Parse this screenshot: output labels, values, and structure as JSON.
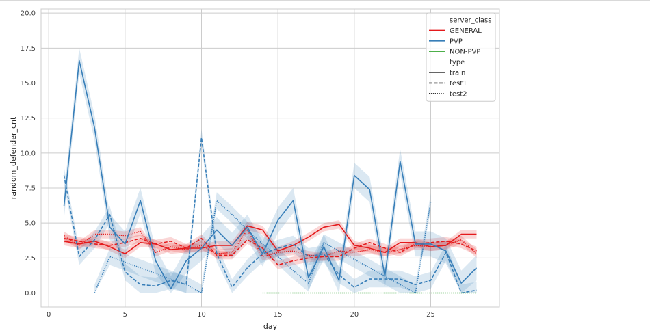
{
  "chart_data": {
    "type": "line",
    "title": "",
    "xlabel": "day",
    "ylabel": "random_defender_cnt",
    "xlim": [
      -0.5,
      29.5
    ],
    "ylim": [
      -1.0,
      20.3
    ],
    "xticks": [
      0,
      5,
      10,
      15,
      20,
      25
    ],
    "yticks": [
      0.0,
      2.5,
      5.0,
      7.5,
      10.0,
      12.5,
      15.0,
      17.5,
      20.0
    ],
    "xtick_labels": [
      "0",
      "5",
      "10",
      "15",
      "20",
      "25"
    ],
    "ytick_labels": [
      "0.0",
      "2.5",
      "5.0",
      "7.5",
      "10.0",
      "12.5",
      "15.0",
      "17.5",
      "20.0"
    ],
    "grid": true,
    "legend_position": "top-right",
    "legend": {
      "hue_title": "server_class",
      "hue_entries": [
        {
          "label": "GENERAL",
          "color": "#e41a1c"
        },
        {
          "label": "PVP",
          "color": "#377eb8"
        },
        {
          "label": "NON-PVP",
          "color": "#4daf4a"
        }
      ],
      "style_title": "type",
      "style_entries": [
        {
          "label": "train",
          "dash": "solid"
        },
        {
          "label": "test1",
          "dash": "dashed"
        },
        {
          "label": "test2",
          "dash": "dotted"
        }
      ]
    },
    "series": [
      {
        "server_class": "GENERAL",
        "type": "train",
        "color": "#e41a1c",
        "dash": "solid",
        "x": [
          1,
          2,
          3,
          4,
          5,
          6,
          7,
          8,
          9,
          10,
          11,
          12,
          13,
          14,
          15,
          16,
          17,
          18,
          19,
          20,
          21,
          22,
          23,
          24,
          25,
          26,
          27,
          28
        ],
        "y": [
          3.7,
          3.5,
          3.7,
          3.3,
          2.8,
          3.6,
          3.5,
          3.1,
          3.2,
          3.2,
          3.4,
          3.4,
          4.8,
          4.5,
          3.0,
          3.4,
          4.0,
          4.7,
          4.9,
          3.4,
          3.2,
          2.9,
          3.6,
          3.6,
          3.3,
          3.4,
          4.2,
          4.2
        ],
        "band": 0.3
      },
      {
        "server_class": "GENERAL",
        "type": "test1",
        "color": "#e41a1c",
        "dash": "dashed",
        "x": [
          1,
          2,
          3,
          4,
          5,
          6,
          7,
          8,
          9,
          10,
          11,
          12,
          13,
          14,
          15,
          16,
          17,
          18,
          19,
          20,
          21,
          22,
          23,
          24,
          25,
          26,
          27,
          28
        ],
        "y": [
          3.9,
          3.7,
          3.5,
          3.4,
          3.6,
          3.9,
          3.5,
          3.7,
          3.2,
          3.9,
          2.7,
          2.7,
          3.8,
          3.2,
          2.0,
          2.3,
          2.5,
          2.6,
          2.6,
          3.2,
          3.6,
          3.2,
          2.9,
          3.5,
          3.6,
          3.7,
          3.5,
          3.0
        ],
        "band": 0.3
      },
      {
        "server_class": "GENERAL",
        "type": "test2",
        "color": "#e41a1c",
        "dash": "dotted",
        "x": [
          1,
          2,
          3,
          4,
          5,
          6,
          7,
          8,
          9,
          10,
          11,
          12,
          13,
          14,
          15,
          16,
          17,
          18,
          19,
          20,
          21,
          22,
          23,
          24,
          25,
          26,
          27,
          28
        ],
        "y": [
          4.1,
          3.4,
          4.2,
          4.2,
          4.1,
          4.4,
          2.9,
          3.3,
          3.1,
          3.4,
          2.8,
          2.9,
          4.5,
          2.6,
          2.9,
          3.0,
          2.7,
          2.6,
          3.0,
          2.9,
          3.1,
          2.9,
          3.1,
          3.4,
          3.3,
          3.4,
          3.8,
          2.8
        ],
        "band": 0.3
      },
      {
        "server_class": "PVP",
        "type": "train",
        "color": "#377eb8",
        "dash": "solid",
        "x": [
          1,
          2,
          3,
          4,
          5,
          6,
          7,
          8,
          9,
          10,
          11,
          12,
          13,
          14,
          15,
          16,
          17,
          18,
          19,
          20,
          21,
          22,
          23,
          24,
          25,
          26,
          27,
          28
        ],
        "y": [
          6.2,
          16.6,
          11.8,
          4.7,
          3.5,
          6.6,
          2.3,
          0.3,
          2.3,
          3.2,
          4.5,
          3.4,
          4.7,
          2.8,
          5.2,
          6.6,
          1.1,
          3.3,
          0.9,
          8.4,
          7.4,
          1.2,
          9.4,
          3.5,
          3.5,
          3.0,
          0.7,
          1.8
        ],
        "band": 0.9
      },
      {
        "server_class": "PVP",
        "type": "test1",
        "color": "#377eb8",
        "dash": "dashed",
        "x": [
          1,
          2,
          3,
          4,
          5,
          6,
          7,
          8,
          9,
          10,
          11,
          12,
          13,
          14,
          15,
          16,
          17,
          18,
          19,
          20,
          21,
          22,
          23,
          24,
          25,
          26,
          27,
          28
        ],
        "y": [
          8.4,
          2.6,
          3.8,
          5.6,
          1.5,
          0.6,
          0.5,
          0.9,
          0.6,
          11.1,
          2.8,
          0.4,
          1.8,
          2.8,
          3.2,
          3.5,
          2.6,
          2.8,
          1.3,
          0.4,
          1.0,
          1.0,
          1.0,
          0.6,
          0.9,
          2.9,
          0.0,
          0.2
        ],
        "band": 0.6
      },
      {
        "server_class": "PVP",
        "type": "test2",
        "color": "#377eb8",
        "dash": "dotted",
        "x": [
          3,
          4,
          5,
          6,
          7,
          8,
          9,
          10,
          11,
          12,
          13,
          14,
          15,
          16,
          17,
          18,
          19,
          20,
          21,
          22,
          23,
          24,
          25
        ],
        "y": [
          0.0,
          2.6,
          2.2,
          1.8,
          1.4,
          1.0,
          0.6,
          0.0,
          6.6,
          5.6,
          4.5,
          3.5,
          2.6,
          1.6,
          0.7,
          3.6,
          3.0,
          2.4,
          1.8,
          1.2,
          0.6,
          0.0,
          6.5
        ],
        "band": 0.6
      },
      {
        "server_class": "NON-PVP",
        "type": "test2",
        "color": "#4daf4a",
        "dash": "dotted",
        "x": [
          14,
          15,
          16,
          17,
          18,
          19,
          20,
          21,
          22,
          23,
          24,
          25,
          26,
          27,
          28
        ],
        "y": [
          0,
          0,
          0,
          0,
          0,
          0,
          0,
          0,
          0,
          0,
          0,
          0,
          0,
          0,
          0
        ],
        "band": 0
      }
    ]
  }
}
